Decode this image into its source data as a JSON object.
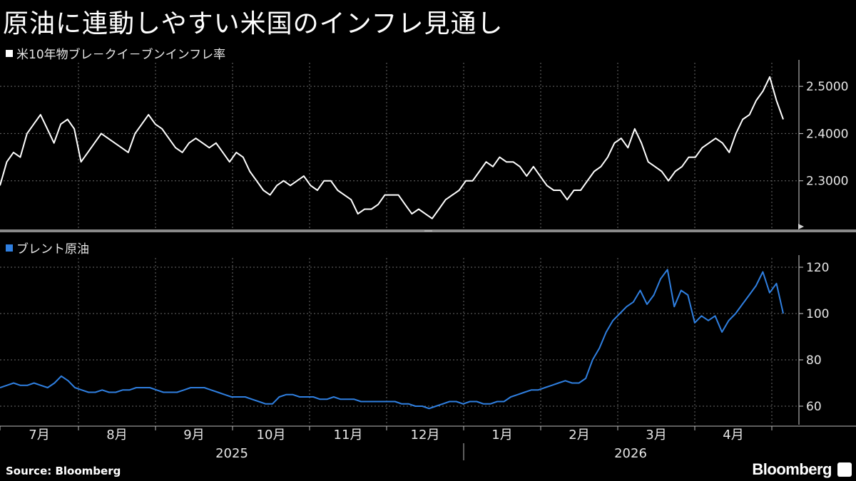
{
  "title": "原油に連動しやすい米国のインフレ見通し",
  "source": "Source: Bloomberg",
  "brand": "Bloomberg",
  "colors": {
    "top_series": "#ffffff",
    "bottom_series": "#2f7fe0",
    "grid": "#6a6a6a",
    "background": "#000000"
  },
  "chart_data": [
    {
      "type": "line",
      "panel": "top",
      "legend": "米10年物ブレ－クイ－ブンインフレ率",
      "ylim": [
        2.2,
        2.55
      ],
      "yticks": [
        2.3,
        2.4,
        2.5
      ],
      "ytick_labels": [
        "2.3000",
        "2.4000",
        "2.5000"
      ],
      "x_tick_labels": [
        "7月",
        "8月",
        "9月",
        "10月",
        "11月",
        "12月",
        "1月",
        "2月",
        "3月",
        "4月"
      ],
      "year_labels": [
        "2025",
        "2026"
      ],
      "series": [
        {
          "values": [
            2.29,
            2.34,
            2.36,
            2.35,
            2.4,
            2.42,
            2.44,
            2.41,
            2.38,
            2.42,
            2.43,
            2.41,
            2.34,
            2.36,
            2.38,
            2.4,
            2.39,
            2.38,
            2.37,
            2.36,
            2.4,
            2.42,
            2.44,
            2.42,
            2.41,
            2.39,
            2.37,
            2.36,
            2.38,
            2.39,
            2.38,
            2.37,
            2.38,
            2.36,
            2.34,
            2.36,
            2.35,
            2.32,
            2.3,
            2.28,
            2.27,
            2.29,
            2.3,
            2.29,
            2.3,
            2.31,
            2.29,
            2.28,
            2.3,
            2.3,
            2.28,
            2.27,
            2.26,
            2.23,
            2.24,
            2.24,
            2.25,
            2.27,
            2.27,
            2.27,
            2.25,
            2.23,
            2.24,
            2.23,
            2.22,
            2.24,
            2.26,
            2.27,
            2.28,
            2.3,
            2.3,
            2.32,
            2.34,
            2.33,
            2.35,
            2.34,
            2.34,
            2.33,
            2.31,
            2.33,
            2.31,
            2.29,
            2.28,
            2.28,
            2.26,
            2.28,
            2.28,
            2.3,
            2.32,
            2.33,
            2.35,
            2.38,
            2.39,
            2.37,
            2.41,
            2.38,
            2.34,
            2.33,
            2.32,
            2.3,
            2.32,
            2.33,
            2.35,
            2.35,
            2.37,
            2.38,
            2.39,
            2.38,
            2.36,
            2.4,
            2.43,
            2.44,
            2.47,
            2.49,
            2.52,
            2.47,
            2.43
          ]
        }
      ]
    },
    {
      "type": "line",
      "panel": "bottom",
      "legend": "ブレント原油",
      "ylim": [
        52,
        124
      ],
      "yticks": [
        60,
        80,
        100,
        120
      ],
      "ytick_labels": [
        "60",
        "80",
        "100",
        "120"
      ],
      "series": [
        {
          "values": [
            68,
            69,
            70,
            69,
            69,
            70,
            69,
            68,
            70,
            73,
            71,
            68,
            67,
            66,
            66,
            67,
            66,
            66,
            67,
            67,
            68,
            68,
            68,
            67,
            66,
            66,
            66,
            67,
            68,
            68,
            68,
            67,
            66,
            65,
            64,
            64,
            64,
            63,
            62,
            61,
            61,
            64,
            65,
            65,
            64,
            64,
            64,
            63,
            63,
            64,
            63,
            63,
            63,
            62,
            62,
            62,
            62,
            62,
            62,
            61,
            61,
            60,
            60,
            59,
            60,
            61,
            62,
            62,
            61,
            62,
            62,
            61,
            61,
            62,
            62,
            64,
            65,
            66,
            67,
            67,
            68,
            69,
            70,
            71,
            70,
            70,
            72,
            80,
            85,
            92,
            97,
            100,
            103,
            105,
            110,
            104,
            108,
            115,
            119,
            103,
            110,
            108,
            96,
            99,
            97,
            99,
            92,
            97,
            100,
            104,
            108,
            112,
            118,
            109,
            113,
            100
          ]
        }
      ]
    }
  ]
}
